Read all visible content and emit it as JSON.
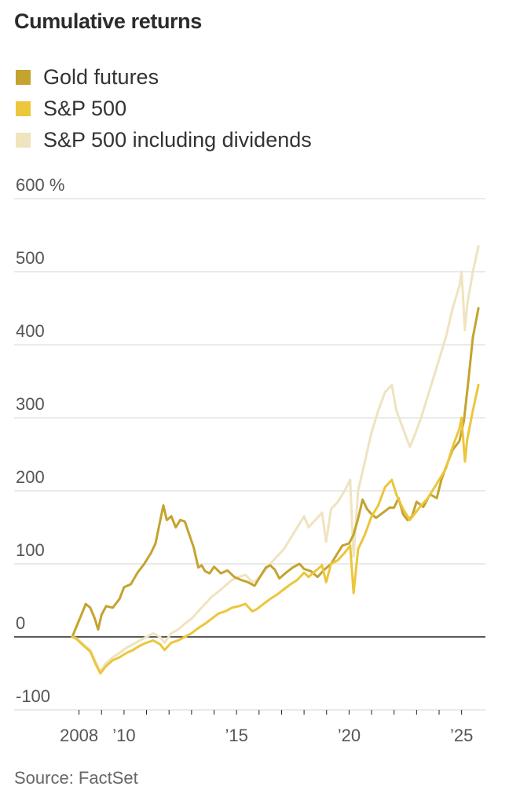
{
  "title": "Cumulative returns",
  "source": "Source: FactSet",
  "legend": [
    {
      "label": "Gold futures",
      "color": "#c4a32f"
    },
    {
      "label": "S&P 500",
      "color": "#ecc63b"
    },
    {
      "label": "S&P 500 including dividends",
      "color": "#efe3c0"
    }
  ],
  "chart_data": {
    "type": "line",
    "y_tick_labels": [
      "600 %",
      "500",
      "400",
      "300",
      "200",
      "100",
      "0",
      "-100"
    ],
    "y_ticks": [
      600,
      500,
      400,
      300,
      200,
      100,
      0,
      -100
    ],
    "x_tick_labels": [
      "2008",
      "’10",
      "’15",
      "’20",
      "’25"
    ],
    "x_ticks": [
      2008,
      2010,
      2015,
      2020,
      2025
    ],
    "xlim": [
      2007.7,
      2025.85
    ],
    "ylim": [
      -100,
      600
    ],
    "grid": true,
    "legend_position": "top-left",
    "series": [
      {
        "name": "Gold futures",
        "color": "#c4a32f",
        "x": [
          2007.7,
          2007.9,
          2008.1,
          2008.3,
          2008.5,
          2008.7,
          2008.85,
          2009.0,
          2009.2,
          2009.5,
          2009.8,
          2010.0,
          2010.3,
          2010.6,
          2010.9,
          2011.2,
          2011.4,
          2011.6,
          2011.75,
          2011.9,
          2012.1,
          2012.3,
          2012.5,
          2012.7,
          2012.9,
          2013.1,
          2013.3,
          2013.45,
          2013.6,
          2013.8,
          2014.0,
          2014.3,
          2014.6,
          2014.9,
          2015.2,
          2015.5,
          2015.8,
          2016.0,
          2016.3,
          2016.5,
          2016.7,
          2016.9,
          2017.2,
          2017.5,
          2017.8,
          2018.0,
          2018.3,
          2018.6,
          2018.9,
          2019.2,
          2019.5,
          2019.7,
          2020.0,
          2020.2,
          2020.4,
          2020.6,
          2020.8,
          2021.0,
          2021.2,
          2021.5,
          2021.8,
          2022.0,
          2022.2,
          2022.4,
          2022.6,
          2022.8,
          2023.0,
          2023.3,
          2023.6,
          2023.9,
          2024.1,
          2024.3,
          2024.6,
          2024.9,
          2025.1,
          2025.3,
          2025.5,
          2025.75
        ],
        "values": [
          0,
          15,
          30,
          45,
          40,
          25,
          10,
          30,
          42,
          40,
          52,
          68,
          72,
          88,
          100,
          115,
          128,
          158,
          180,
          160,
          165,
          150,
          160,
          158,
          140,
          122,
          95,
          98,
          90,
          87,
          96,
          87,
          91,
          82,
          78,
          75,
          70,
          80,
          95,
          98,
          92,
          80,
          88,
          95,
          100,
          93,
          90,
          82,
          92,
          100,
          115,
          125,
          128,
          140,
          162,
          188,
          175,
          168,
          163,
          170,
          177,
          177,
          190,
          168,
          160,
          165,
          185,
          178,
          195,
          190,
          215,
          232,
          256,
          268,
          295,
          350,
          410,
          450
        ]
      },
      {
        "name": "S&P 500",
        "color": "#ecc63b",
        "x": [
          2007.7,
          2007.9,
          2008.2,
          2008.5,
          2008.75,
          2008.95,
          2009.2,
          2009.5,
          2009.8,
          2010.1,
          2010.4,
          2010.7,
          2011.0,
          2011.3,
          2011.6,
          2011.8,
          2012.1,
          2012.4,
          2012.7,
          2013.0,
          2013.3,
          2013.6,
          2013.9,
          2014.2,
          2014.5,
          2014.8,
          2015.1,
          2015.4,
          2015.7,
          2015.9,
          2016.2,
          2016.5,
          2016.8,
          2017.1,
          2017.4,
          2017.7,
          2018.0,
          2018.2,
          2018.5,
          2018.8,
          2018.98,
          2019.2,
          2019.5,
          2019.8,
          2020.05,
          2020.2,
          2020.4,
          2020.7,
          2021.0,
          2021.3,
          2021.6,
          2021.9,
          2022.1,
          2022.4,
          2022.7,
          2022.9,
          2023.2,
          2023.5,
          2023.8,
          2024.0,
          2024.3,
          2024.6,
          2024.9,
          2025.0,
          2025.15,
          2025.25,
          2025.5,
          2025.75
        ],
        "values": [
          0,
          -3,
          -12,
          -20,
          -38,
          -50,
          -40,
          -32,
          -28,
          -22,
          -18,
          -12,
          -8,
          -5,
          -10,
          -18,
          -8,
          -5,
          0,
          5,
          12,
          18,
          25,
          32,
          35,
          40,
          42,
          45,
          35,
          38,
          45,
          52,
          58,
          65,
          72,
          78,
          88,
          82,
          90,
          98,
          75,
          100,
          105,
          115,
          125,
          60,
          120,
          140,
          165,
          180,
          205,
          215,
          195,
          175,
          160,
          168,
          180,
          190,
          205,
          215,
          230,
          260,
          285,
          300,
          240,
          270,
          310,
          345
        ]
      },
      {
        "name": "S&P 500 including dividends",
        "color": "#efe3c0",
        "x": [
          2007.7,
          2007.9,
          2008.2,
          2008.5,
          2008.75,
          2008.95,
          2009.2,
          2009.5,
          2009.8,
          2010.1,
          2010.4,
          2010.7,
          2011.0,
          2011.3,
          2011.6,
          2011.8,
          2012.1,
          2012.4,
          2012.7,
          2013.0,
          2013.3,
          2013.6,
          2013.9,
          2014.2,
          2014.5,
          2014.8,
          2015.1,
          2015.4,
          2015.7,
          2015.9,
          2016.2,
          2016.5,
          2016.8,
          2017.1,
          2017.4,
          2017.7,
          2018.0,
          2018.2,
          2018.5,
          2018.8,
          2018.98,
          2019.2,
          2019.5,
          2019.8,
          2020.05,
          2020.2,
          2020.4,
          2020.7,
          2021.0,
          2021.3,
          2021.6,
          2021.9,
          2022.1,
          2022.4,
          2022.7,
          2022.9,
          2023.2,
          2023.5,
          2023.8,
          2024.0,
          2024.3,
          2024.6,
          2024.9,
          2025.0,
          2025.15,
          2025.25,
          2025.5,
          2025.75
        ],
        "values": [
          0,
          -2,
          -10,
          -18,
          -35,
          -47,
          -36,
          -28,
          -22,
          -15,
          -10,
          -5,
          0,
          5,
          0,
          -8,
          5,
          10,
          18,
          25,
          35,
          45,
          55,
          62,
          70,
          78,
          82,
          85,
          75,
          78,
          88,
          100,
          110,
          120,
          135,
          150,
          165,
          150,
          160,
          170,
          130,
          175,
          185,
          200,
          215,
          110,
          200,
          240,
          280,
          310,
          335,
          345,
          310,
          285,
          260,
          275,
          300,
          330,
          360,
          380,
          410,
          450,
          480,
          500,
          420,
          455,
          500,
          535
        ]
      }
    ]
  }
}
